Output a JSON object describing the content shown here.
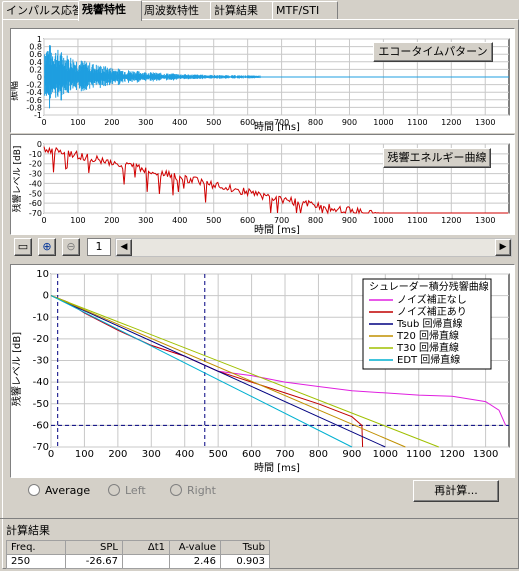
{
  "tabs": [
    "インパルス応答",
    "残響特性",
    "周波数特性",
    "計算結果",
    "MTF/STI"
  ],
  "echo": {
    "button": "エコータイムパターン",
    "ylabel": "振幅",
    "xlabel": "時間 [ms]",
    "yticks": [
      "1",
      "0.8",
      "0.6",
      "0.4",
      "0.2",
      "0",
      "-0.2",
      "-0.4",
      "-0.6",
      "-0.8",
      "-1"
    ],
    "xticks": [
      "0",
      "100",
      "200",
      "300",
      "400",
      "500",
      "600",
      "700",
      "800",
      "900",
      "1000",
      "1100",
      "1200",
      "1300"
    ]
  },
  "energy": {
    "button": "残響エネルギー曲線",
    "ylabel": "残響レベル [dB]",
    "xlabel": "時間 [ms]",
    "yticks": [
      "0",
      "-10",
      "-20",
      "-30",
      "-40",
      "-50",
      "-60",
      "-70"
    ],
    "xticks": [
      "0",
      "100",
      "200",
      "300",
      "400",
      "500",
      "600",
      "700",
      "800",
      "900",
      "1000",
      "1100",
      "1200",
      "1300"
    ]
  },
  "toolbar": {
    "page": "1",
    "icon_names": [
      "fit-view-icon",
      "zoom-in-icon",
      "zoom-out-icon"
    ]
  },
  "chart_data": {
    "type": "line",
    "xlabel": "時間 [ms]",
    "ylabel": "残響レベル [dB]",
    "xlim": [
      0,
      1370
    ],
    "ylim": [
      -70,
      10
    ],
    "yticks": [
      "10",
      "0",
      "-10",
      "-20",
      "-30",
      "-40",
      "-50",
      "-60",
      "-70"
    ],
    "xticks": [
      "0",
      "100",
      "200",
      "300",
      "400",
      "500",
      "600",
      "700",
      "800",
      "900",
      "1000",
      "1100",
      "1200",
      "1300"
    ],
    "legend": {
      "title": "シュレーダー積分残響曲線",
      "entries": [
        "ノイズ補正なし",
        "ノイズ補正あり",
        "Tsub 回帰直線",
        "T20 回帰直線",
        "T30 回帰直線",
        "EDT 回帰直線"
      ]
    },
    "series": [
      {
        "name": "ノイズ補正なし",
        "color": "#e020e0",
        "x": [
          0,
          50,
          100,
          200,
          300,
          400,
          500,
          600,
          700,
          800,
          900,
          1000,
          1100,
          1200,
          1300,
          1340,
          1360
        ],
        "y": [
          0,
          -3,
          -8,
          -16,
          -23,
          -28,
          -35,
          -37,
          -40,
          -42,
          -44,
          -45,
          -46,
          -46.5,
          -49,
          -53,
          -60
        ]
      },
      {
        "name": "ノイズ補正あり",
        "color": "#c00000",
        "x": [
          0,
          50,
          100,
          200,
          300,
          400,
          500,
          600,
          700,
          800,
          900,
          930,
          932
        ],
        "y": [
          0,
          -3,
          -8,
          -16,
          -23,
          -28,
          -35,
          -40,
          -45,
          -50,
          -56,
          -60,
          -70
        ]
      },
      {
        "name": "Tsub 回帰直線",
        "color": "#000080",
        "x": [
          0,
          1000
        ],
        "y": [
          0,
          -70
        ]
      },
      {
        "name": "T20 回帰直線",
        "color": "#c09000",
        "x": [
          0,
          1060
        ],
        "y": [
          0,
          -70
        ]
      },
      {
        "name": "T30 回帰直線",
        "color": "#a0c000",
        "x": [
          0,
          1160
        ],
        "y": [
          0,
          -70
        ]
      },
      {
        "name": "EDT 回帰直線",
        "color": "#00b0d0",
        "x": [
          0,
          900
        ],
        "y": [
          0,
          -70
        ]
      }
    ],
    "markers": {
      "x": [
        20,
        460
      ],
      "y": -60
    }
  },
  "options": {
    "average": "Average",
    "left": "Left",
    "right": "Right",
    "recalc": "再計算..."
  },
  "results": {
    "title": "計算結果",
    "headers": [
      "Freq.",
      "SPL",
      "Δt1",
      "A-value",
      "Tsub"
    ],
    "row": [
      "250",
      "-26.67",
      "",
      "2.46",
      "0.903"
    ]
  }
}
